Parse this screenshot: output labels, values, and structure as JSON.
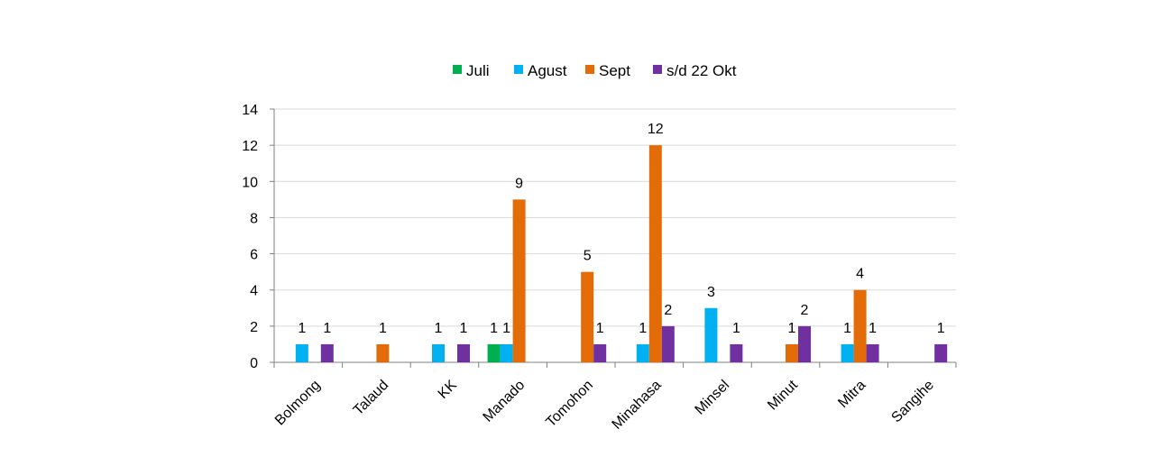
{
  "chart_data": {
    "type": "bar",
    "title": "",
    "xlabel": "",
    "ylabel": "",
    "ylim": [
      0,
      14
    ],
    "yticks": [
      0,
      2,
      4,
      6,
      8,
      10,
      12,
      14
    ],
    "grid": true,
    "legend_position": "top",
    "categories": [
      "Bolmong",
      "Talaud",
      "KK",
      "Manado",
      "Tomohon",
      "Minahasa",
      "Minsel",
      "Minut",
      "Mitra",
      "Sangihe"
    ],
    "series": [
      {
        "name": "Juli",
        "color": "#00b050",
        "values": [
          0,
          0,
          0,
          1,
          0,
          0,
          0,
          0,
          0,
          0
        ]
      },
      {
        "name": "Agust",
        "color": "#00b0f0",
        "values": [
          1,
          0,
          1,
          1,
          0,
          1,
          3,
          0,
          1,
          0
        ]
      },
      {
        "name": "Sept",
        "color": "#e36c09",
        "values": [
          0,
          1,
          0,
          9,
          5,
          12,
          0,
          1,
          4,
          0
        ]
      },
      {
        "name": "s/d 22 Okt",
        "color": "#7030a0",
        "values": [
          1,
          0,
          1,
          0,
          1,
          2,
          1,
          2,
          1,
          1
        ]
      }
    ]
  }
}
